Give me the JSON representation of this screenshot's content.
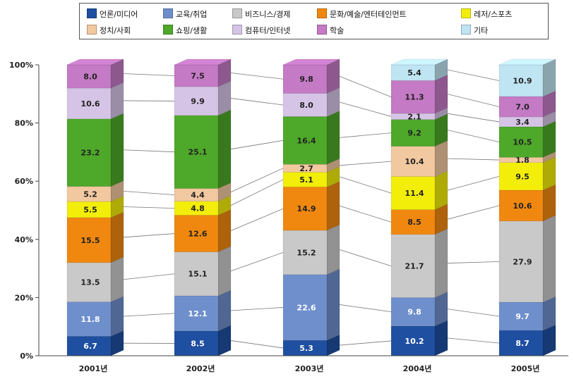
{
  "chart_data": {
    "type": "bar",
    "stacked": true,
    "percent": true,
    "categories": [
      "2001년",
      "2002년",
      "2003년",
      "2004년",
      "2005년"
    ],
    "y_ticks": [
      "0%",
      "20%",
      "40%",
      "60%",
      "80%",
      "100%"
    ],
    "ylim": [
      0,
      100
    ],
    "legend_position": "top",
    "series": [
      {
        "name": "언론/미디어",
        "color": "#1f4fa0",
        "values": [
          6.7,
          8.5,
          5.3,
          10.2,
          8.7
        ]
      },
      {
        "name": "교육/취업",
        "color": "#6f8fcc",
        "values": [
          11.8,
          12.1,
          22.6,
          9.8,
          9.7
        ]
      },
      {
        "name": "비즈니스/경제",
        "color": "#c9c9c9",
        "values": [
          13.5,
          15.1,
          15.2,
          21.7,
          27.9
        ]
      },
      {
        "name": "문화/예술/엔터테인먼트",
        "color": "#f0880f",
        "values": [
          15.5,
          12.6,
          14.9,
          8.5,
          10.6
        ]
      },
      {
        "name": "레저/스포츠",
        "color": "#f2ee0a",
        "values": [
          5.5,
          4.8,
          5.1,
          11.4,
          9.5
        ]
      },
      {
        "name": "정치/사회",
        "color": "#f2c8a0",
        "values": [
          5.2,
          4.4,
          2.7,
          10.4,
          1.8
        ]
      },
      {
        "name": "쇼핑/생활",
        "color": "#4ea82a",
        "values": [
          23.2,
          25.1,
          16.4,
          9.2,
          10.5
        ]
      },
      {
        "name": "컴퓨터/인터넷",
        "color": "#d6c4e6",
        "values": [
          10.6,
          9.9,
          8.0,
          2.1,
          3.4
        ]
      },
      {
        "name": "학술",
        "color": "#c47ac4",
        "values": [
          8.0,
          7.5,
          9.8,
          11.3,
          7.0
        ]
      },
      {
        "name": "기타",
        "color": "#bfe4f2",
        "values": [
          0,
          0,
          0,
          5.4,
          10.9
        ]
      }
    ],
    "data_labels": [
      [
        "6.7",
        "11.8",
        "13.5",
        "15.5",
        "5.5",
        "5.2",
        "23.2",
        "10.6",
        "8.0",
        ""
      ],
      [
        "8.5",
        "12.1",
        "15.1",
        "12.6",
        "4.8",
        "4.4",
        "25.1",
        "9.9",
        "7.5",
        ""
      ],
      [
        "5.3",
        "22.6",
        "15.2",
        "14.9",
        "5.1",
        "2.7",
        "16.4",
        "8.0",
        "9.8",
        ""
      ],
      [
        "10.2",
        "9.8",
        "21.7",
        "8.5",
        "11.4",
        "10.4",
        "9.2",
        "2.1",
        "11.3",
        "5.4"
      ],
      [
        "8.7",
        "9.7",
        "27.9",
        "10.6",
        "9.5",
        "1.8",
        "10.5",
        "3.4",
        "7.0",
        "10.9"
      ]
    ]
  }
}
